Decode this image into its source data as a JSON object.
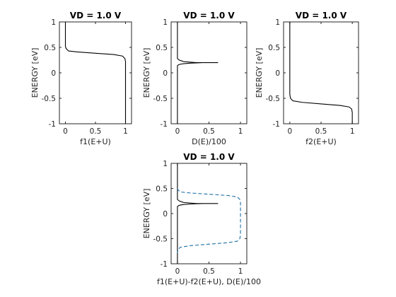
{
  "figure": {
    "background": "#ffffff",
    "axes_color": "#262626"
  },
  "chart_data": [
    {
      "type": "line",
      "title": "VD = 1.0 V",
      "xlabel": "f1(E+U)",
      "ylabel": "ENERGY  [eV]",
      "xlim": [
        -0.1,
        1.1
      ],
      "ylim": [
        -1,
        1
      ],
      "xticks": [
        0,
        0.5,
        1
      ],
      "xtick_labels": [
        "0",
        "0.5",
        "1"
      ],
      "yticks": [
        -1,
        -0.5,
        0,
        0.5,
        1
      ],
      "ytick_labels": [
        "-1",
        "-0.5",
        "0",
        "0.5",
        "1"
      ],
      "grid": false,
      "series": [
        {
          "color": "#000000",
          "style": "solid",
          "x": [
            0,
            0,
            0.01,
            0.05,
            0.2,
            0.5,
            0.8,
            0.95,
            0.99,
            1.0,
            1.0
          ],
          "y": [
            1.0,
            0.52,
            0.48,
            0.43,
            0.41,
            0.385,
            0.36,
            0.33,
            0.28,
            0.22,
            -1.0
          ]
        }
      ]
    },
    {
      "type": "line",
      "title": "VD = 1.0 V",
      "xlabel": "D(E)/100",
      "ylabel": "ENERGY  [eV]",
      "xlim": [
        -0.1,
        1.1
      ],
      "ylim": [
        -1,
        1
      ],
      "xticks": [
        0,
        0.5,
        1
      ],
      "xtick_labels": [
        "0",
        "0.5",
        "1"
      ],
      "yticks": [
        -1,
        -0.5,
        0,
        0.5,
        1
      ],
      "ytick_labels": [
        "-1",
        "-0.5",
        "0",
        "0.5",
        "1"
      ],
      "grid": false,
      "series": [
        {
          "color": "#000000",
          "style": "solid",
          "x": [
            0,
            0,
            0.02,
            0.05,
            0.1,
            0.2,
            0.4,
            0.64,
            0.3,
            0.1,
            0.03,
            0,
            0
          ],
          "y": [
            -1.0,
            0.14,
            0.16,
            0.17,
            0.18,
            0.19,
            0.2,
            0.2,
            0.2,
            0.22,
            0.25,
            0.28,
            1.0
          ]
        }
      ]
    },
    {
      "type": "line",
      "title": "VD = 1.0 V",
      "xlabel": "f2(E+U)",
      "ylabel": "ENERGY  [eV]",
      "xlim": [
        -0.1,
        1.1
      ],
      "ylim": [
        -1,
        1
      ],
      "xticks": [
        0,
        0.5,
        1
      ],
      "xtick_labels": [
        "0",
        "0.5",
        "1"
      ],
      "yticks": [
        -1,
        -0.5,
        0,
        0.5,
        1
      ],
      "ytick_labels": [
        "-1",
        "-0.5",
        "0",
        "0.5",
        "1"
      ],
      "grid": false,
      "series": [
        {
          "color": "#000000",
          "style": "solid",
          "x": [
            0,
            0,
            0.01,
            0.05,
            0.2,
            0.5,
            0.8,
            0.95,
            0.99,
            1.0,
            1.0
          ],
          "y": [
            1.0,
            -0.42,
            -0.5,
            -0.55,
            -0.58,
            -0.61,
            -0.64,
            -0.67,
            -0.71,
            -0.78,
            -1.0
          ]
        }
      ]
    },
    {
      "type": "line",
      "title": "VD = 1.0 V",
      "xlabel": "f1(E+U)-f2(E+U), D(E)/100",
      "ylabel": "ENERGY  [eV]",
      "xlim": [
        -0.1,
        1.1
      ],
      "ylim": [
        -1,
        1
      ],
      "xticks": [
        0,
        0.5,
        1
      ],
      "xtick_labels": [
        "0",
        "0.5",
        "1"
      ],
      "yticks": [
        -1,
        -0.5,
        0,
        0.5,
        1
      ],
      "ytick_labels": [
        "-1",
        "-0.5",
        "0",
        "0.5",
        "1"
      ],
      "grid": false,
      "series": [
        {
          "color": "#000000",
          "style": "solid",
          "x": [
            0,
            0,
            0.02,
            0.05,
            0.1,
            0.2,
            0.4,
            0.64,
            0.3,
            0.1,
            0.03,
            0,
            0
          ],
          "y": [
            -1.0,
            0.14,
            0.16,
            0.17,
            0.18,
            0.19,
            0.2,
            0.2,
            0.2,
            0.22,
            0.25,
            0.28,
            1.0
          ]
        },
        {
          "color": "#1f6fa5",
          "style": "dashed",
          "x": [
            0,
            0.01,
            0.05,
            0.2,
            0.5,
            0.8,
            0.95,
            0.99,
            1.0,
            1.0,
            0.99,
            0.95,
            0.8,
            0.5,
            0.2,
            0.05,
            0.01,
            0
          ],
          "y": [
            0.5,
            0.47,
            0.43,
            0.41,
            0.385,
            0.36,
            0.33,
            0.28,
            0.22,
            -0.42,
            -0.5,
            -0.55,
            -0.58,
            -0.61,
            -0.64,
            -0.67,
            -0.71,
            -0.78
          ]
        }
      ]
    }
  ]
}
